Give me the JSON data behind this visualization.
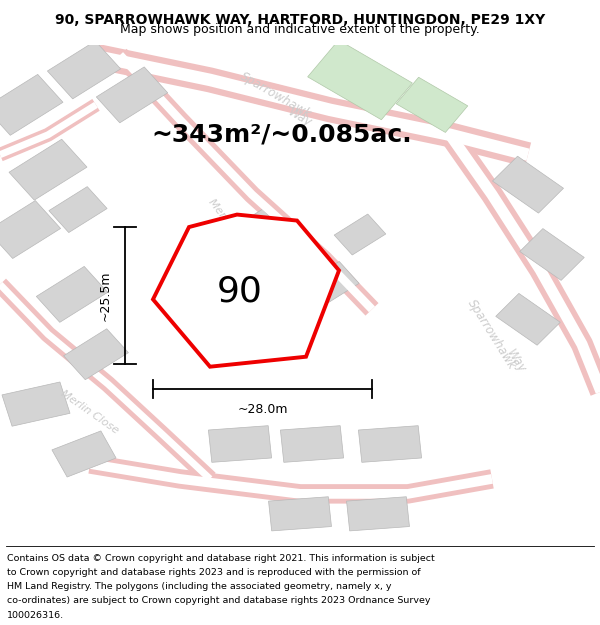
{
  "title_line1": "90, SPARROWHAWK WAY, HARTFORD, HUNTINGDON, PE29 1XY",
  "title_line2": "Map shows position and indicative extent of the property.",
  "area_text": "~343m²/~0.085ac.",
  "property_number": "90",
  "dim_height": "~25.5m",
  "dim_width": "~28.0m",
  "footer_lines": [
    "Contains OS data © Crown copyright and database right 2021. This information is subject",
    "to Crown copyright and database rights 2023 and is reproduced with the permission of",
    "HM Land Registry. The polygons (including the associated geometry, namely x, y",
    "co-ordinates) are subject to Crown copyright and database rights 2023 Ordnance Survey",
    "100026316."
  ],
  "map_bg": "#f2f0f0",
  "road_outer": "#f0c0c0",
  "road_inner": "#ffffff",
  "block_fill": "#d4d4d4",
  "block_edge": "#c0c0c0",
  "plot_fill": "#ffffff",
  "plot_edge": "#ee0000",
  "green_fill": "#d0e8cc",
  "road_label_color": "#cccccc",
  "title_fontsize": 10,
  "subtitle_fontsize": 9,
  "area_fontsize": 18,
  "number_fontsize": 26,
  "dim_fontsize": 9,
  "footer_fontsize": 6.8,
  "road_label_fontsize": 8.5
}
